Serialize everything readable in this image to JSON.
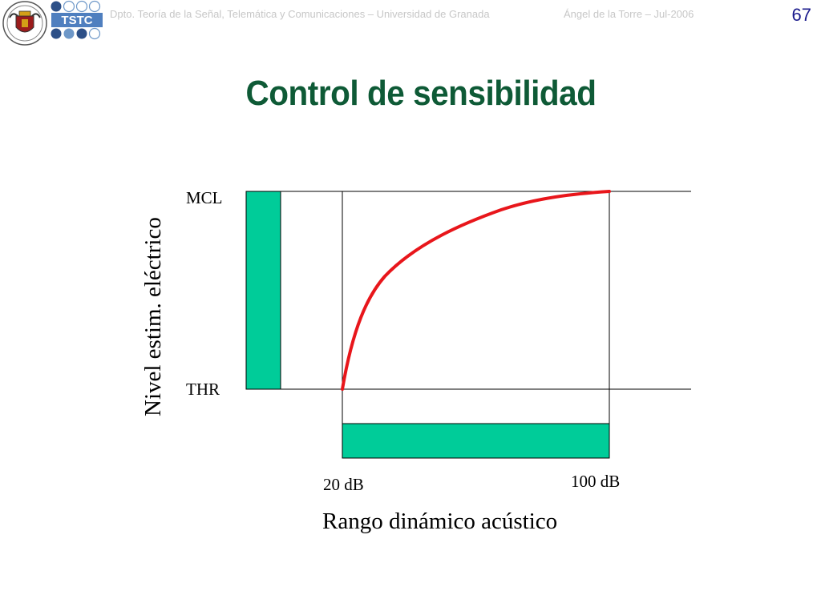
{
  "header": {
    "left_text": "Dpto. Teoría de la Señal, Telemática y Comunicaciones – Universidad de Granada",
    "right_text": "Ángel de la Torre – Jul-2006",
    "page_number": "67",
    "logo_text": "TSTC"
  },
  "slide": {
    "title": "Control de sensibilidad"
  },
  "diagram": {
    "y_axis_label": "Nivel estim. eléctrico",
    "x_axis_label": "Rango dinámico acústico",
    "level_top_label": "MCL",
    "level_bottom_label": "THR",
    "x_start_label": "20 dB",
    "x_end_label": "100 dB"
  },
  "colors": {
    "title": "#0e5a36",
    "bar_fill": "#00cc99",
    "curve": "#e8161b",
    "header_text": "#c7c7c7",
    "page_number": "#1a1a8c"
  }
}
